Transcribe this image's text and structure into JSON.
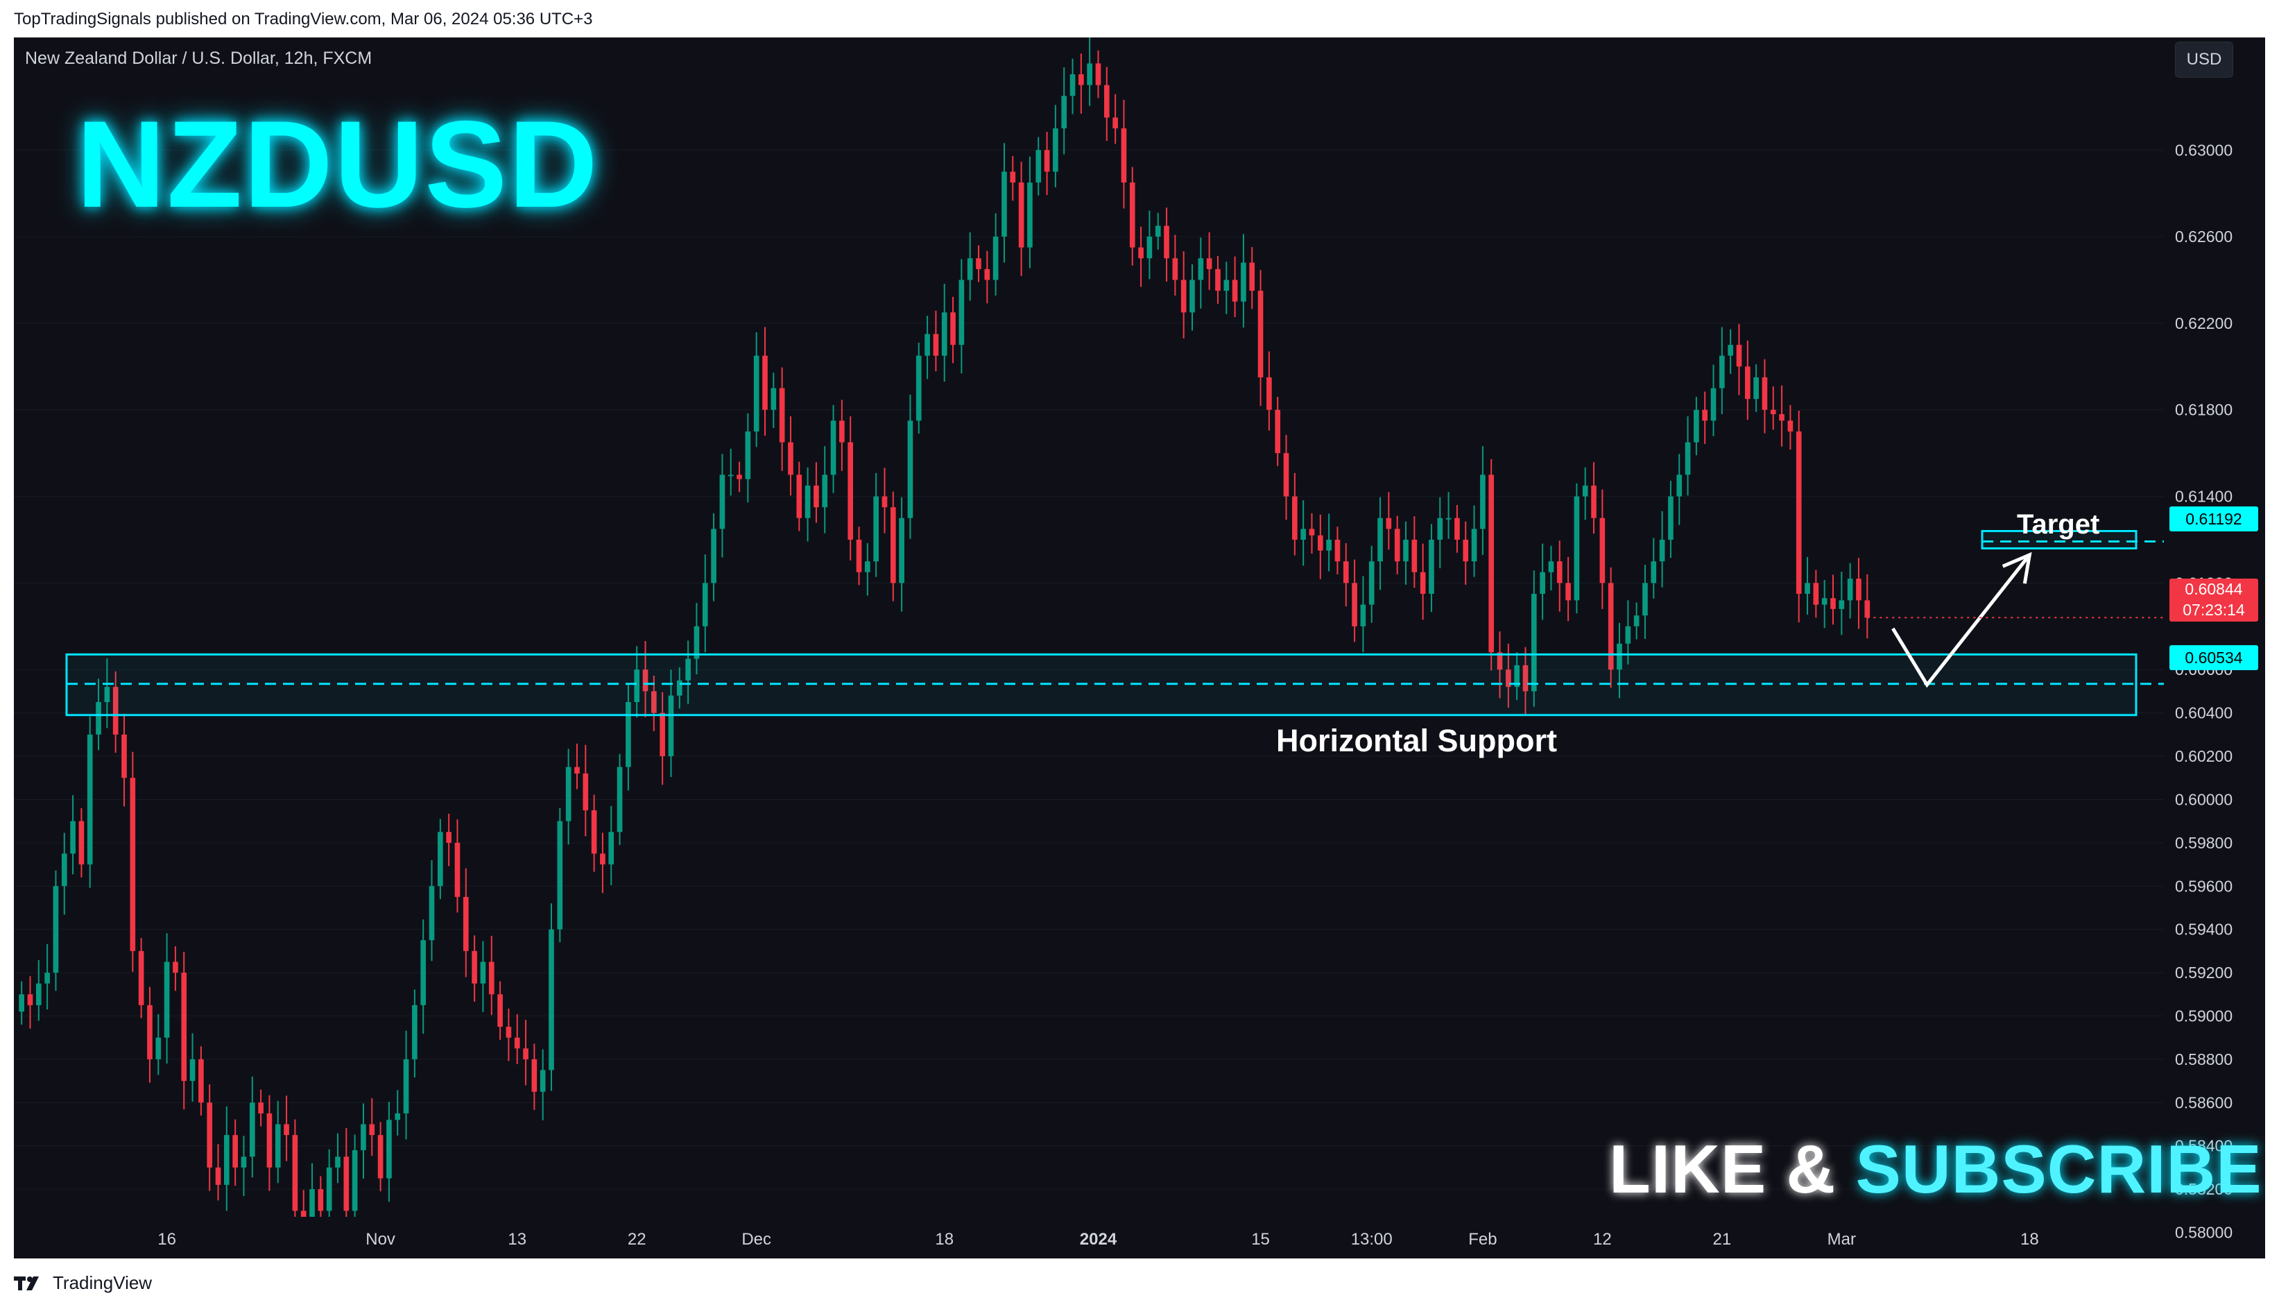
{
  "header": {
    "publish_line": "TopTradingSignals published on TradingView.com, Mar 06, 2024 05:36 UTC+3"
  },
  "chart": {
    "symbol_title": "New Zealand Dollar / U.S. Dollar, 12h, FXCM",
    "currency_button": "USD",
    "big_ticker": "NZDUSD",
    "like_text": "LIKE &",
    "subscribe_text": "SUBSCRIBE",
    "support_label": "Horizontal Support",
    "target_label": "Target"
  },
  "price_tags": {
    "target": "0.61192",
    "support": "0.60534",
    "last": "0.60844",
    "countdown": "07:23:14"
  },
  "footer": {
    "brand": "TradingView"
  },
  "colors": {
    "background": "#0f1017",
    "up_candle": "#089981",
    "down_candle": "#f23645",
    "zone": "#00e5ff",
    "axis_text": "#d1d4dc"
  },
  "chart_data": {
    "type": "candlestick",
    "y_ticks": [
      "0.63000",
      "0.62600",
      "0.62200",
      "0.61800",
      "0.61400",
      "0.61000",
      "0.60600",
      "0.60400",
      "0.60200",
      "0.60000",
      "0.59800",
      "0.59600",
      "0.59400",
      "0.59200",
      "0.59000",
      "0.58800",
      "0.58600",
      "0.58400",
      "0.58200",
      "0.58000"
    ],
    "y_tick_values": [
      0.63,
      0.626,
      0.622,
      0.618,
      0.614,
      0.61,
      0.606,
      0.604,
      0.602,
      0.6,
      0.598,
      0.596,
      0.594,
      0.592,
      0.59,
      0.588,
      0.586,
      0.584,
      0.582,
      0.58
    ],
    "ylim": [
      0.5788,
      0.6352
    ],
    "x_ticks": [
      {
        "label": "16",
        "bar": 17,
        "bold": false
      },
      {
        "label": "Nov",
        "bar": 42,
        "bold": false
      },
      {
        "label": "13",
        "bar": 58,
        "bold": false
      },
      {
        "label": "22",
        "bar": 72,
        "bold": false
      },
      {
        "label": "Dec",
        "bar": 86,
        "bold": false
      },
      {
        "label": "18",
        "bar": 108,
        "bold": false
      },
      {
        "label": "2024",
        "bar": 126,
        "bold": true
      },
      {
        "label": "15",
        "bar": 145,
        "bold": false
      },
      {
        "label": "13:00",
        "bar": 158,
        "bold": false
      },
      {
        "label": "Feb",
        "bar": 171,
        "bold": false
      },
      {
        "label": "12",
        "bar": 185,
        "bold": false
      },
      {
        "label": "21",
        "bar": 199,
        "bold": false
      },
      {
        "label": "Mar",
        "bar": 213,
        "bold": false
      },
      {
        "label": "18",
        "bar": 235,
        "bold": false
      }
    ],
    "support_zone": {
      "top": 0.6067,
      "bottom": 0.6039,
      "level": 0.60534
    },
    "target_zone": {
      "top": 0.6124,
      "bottom": 0.6116,
      "level": 0.61192
    },
    "projection": [
      {
        "bar": 219,
        "price": 0.6079
      },
      {
        "bar": 223,
        "price": 0.6053
      },
      {
        "bar": 235,
        "price": 0.6113
      }
    ],
    "closes": [
      0.591,
      0.5905,
      0.5915,
      0.592,
      0.596,
      0.5975,
      0.599,
      0.597,
      0.603,
      0.6045,
      0.6052,
      0.603,
      0.601,
      0.593,
      0.5905,
      0.588,
      0.589,
      0.5925,
      0.592,
      0.587,
      0.588,
      0.586,
      0.583,
      0.5822,
      0.5845,
      0.583,
      0.5835,
      0.586,
      0.5855,
      0.583,
      0.585,
      0.5845,
      0.581,
      0.5802,
      0.582,
      0.581,
      0.583,
      0.5835,
      0.581,
      0.5838,
      0.585,
      0.5845,
      0.5825,
      0.5852,
      0.5855,
      0.588,
      0.5905,
      0.5935,
      0.596,
      0.5985,
      0.598,
      0.5955,
      0.593,
      0.5915,
      0.5925,
      0.591,
      0.5895,
      0.589,
      0.5885,
      0.588,
      0.5865,
      0.5875,
      0.594,
      0.599,
      0.6015,
      0.6012,
      0.5995,
      0.5975,
      0.597,
      0.5985,
      0.6015,
      0.6045,
      0.606,
      0.605,
      0.604,
      0.602,
      0.6048,
      0.6055,
      0.6065,
      0.608,
      0.61,
      0.6125,
      0.615,
      0.615,
      0.6148,
      0.617,
      0.6205,
      0.618,
      0.619,
      0.6165,
      0.615,
      0.613,
      0.6145,
      0.6135,
      0.615,
      0.6175,
      0.6165,
      0.612,
      0.6105,
      0.611,
      0.614,
      0.6135,
      0.61,
      0.613,
      0.6175,
      0.6205,
      0.6215,
      0.6205,
      0.6225,
      0.621,
      0.624,
      0.625,
      0.6245,
      0.624,
      0.626,
      0.629,
      0.6285,
      0.6255,
      0.6285,
      0.63,
      0.629,
      0.631,
      0.6325,
      0.6335,
      0.633,
      0.634,
      0.633,
      0.6315,
      0.631,
      0.6285,
      0.6255,
      0.625,
      0.626,
      0.6265,
      0.625,
      0.624,
      0.6225,
      0.624,
      0.625,
      0.6245,
      0.6235,
      0.624,
      0.623,
      0.6248,
      0.6235,
      0.6195,
      0.618,
      0.616,
      0.614,
      0.612,
      0.6125,
      0.6122,
      0.6115,
      0.612,
      0.611,
      0.61,
      0.608,
      0.609,
      0.611,
      0.613,
      0.6125,
      0.611,
      0.612,
      0.6105,
      0.6095,
      0.612,
      0.613,
      0.613,
      0.612,
      0.611,
      0.6125,
      0.615,
      0.6068,
      0.606,
      0.6052,
      0.6062,
      0.605,
      0.6095,
      0.6105,
      0.611,
      0.61,
      0.6092,
      0.614,
      0.6145,
      0.613,
      0.61,
      0.606,
      0.6072,
      0.608,
      0.6085,
      0.61,
      0.611,
      0.612,
      0.614,
      0.615,
      0.6165,
      0.618,
      0.6175,
      0.619,
      0.6205,
      0.621,
      0.62,
      0.6185,
      0.6195,
      0.618,
      0.6178,
      0.6175,
      0.617,
      0.6095,
      0.61,
      0.609,
      0.6093,
      0.6088,
      0.6092,
      0.6102,
      0.6092,
      0.6084
    ]
  }
}
